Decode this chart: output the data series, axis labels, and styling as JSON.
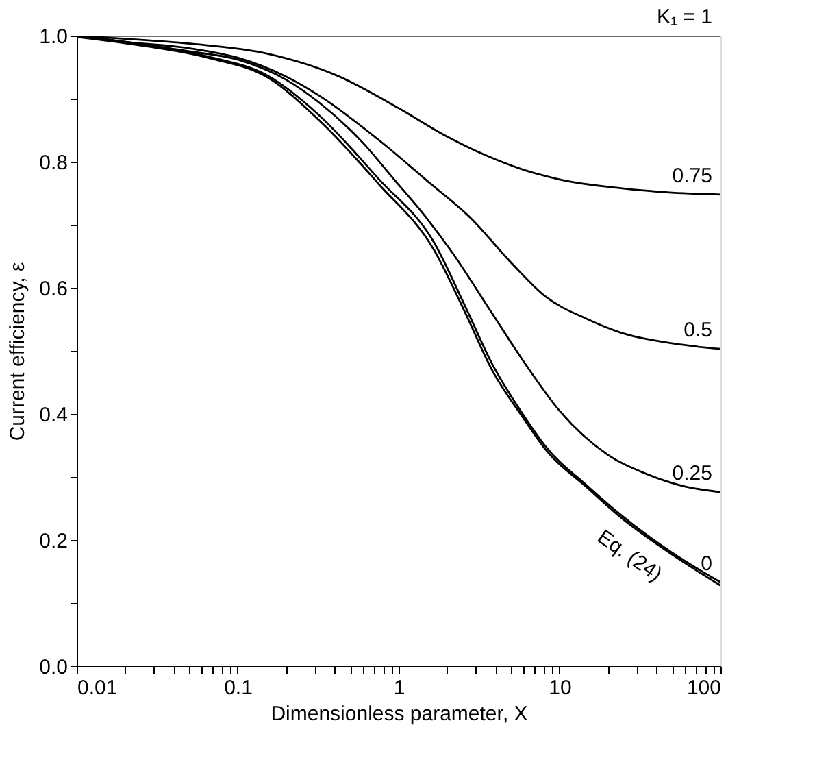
{
  "chart_data": {
    "type": "line",
    "xlabel": "Dimensionless parameter, X",
    "ylabel": "Current efficiency, ε",
    "log": "x",
    "xlim": [
      0.01,
      100
    ],
    "ylim": [
      0,
      1
    ],
    "xticks": [
      {
        "value": 0.01,
        "label": "0.01"
      },
      {
        "value": 0.02,
        "label": null
      },
      {
        "value": 0.03,
        "label": null
      },
      {
        "value": 0.04,
        "label": null
      },
      {
        "value": 0.05,
        "label": null
      },
      {
        "value": 0.06,
        "label": null
      },
      {
        "value": 0.07,
        "label": null
      },
      {
        "value": 0.08,
        "label": null
      },
      {
        "value": 0.09,
        "label": null
      },
      {
        "value": 0.1,
        "label": "0.1"
      },
      {
        "value": 0.2,
        "label": null
      },
      {
        "value": 0.3,
        "label": null
      },
      {
        "value": 0.4,
        "label": null
      },
      {
        "value": 0.5,
        "label": null
      },
      {
        "value": 0.6,
        "label": null
      },
      {
        "value": 0.7,
        "label": null
      },
      {
        "value": 0.8,
        "label": null
      },
      {
        "value": 0.9,
        "label": null
      },
      1,
      {
        "value": 2,
        "label": null
      },
      {
        "value": 3,
        "label": null
      },
      {
        "value": 4,
        "label": null
      },
      {
        "value": 5,
        "label": null
      },
      {
        "value": 6,
        "label": null
      },
      {
        "value": 7,
        "label": null
      },
      {
        "value": 8,
        "label": null
      },
      {
        "value": 9,
        "label": null
      },
      10,
      {
        "value": 20,
        "label": null
      },
      {
        "value": 30,
        "label": null
      },
      {
        "value": 40,
        "label": null
      },
      {
        "value": 50,
        "label": null
      },
      {
        "value": 60,
        "label": null
      },
      {
        "value": 70,
        "label": null
      },
      {
        "value": 80,
        "label": null
      },
      {
        "value": 90,
        "label": null
      },
      100
    ],
    "yticks": [
      {
        "value": 0,
        "label": "0.0"
      },
      {
        "value": 0.1,
        "label": null
      },
      0.2,
      {
        "value": 0.3,
        "label": null
      },
      0.4,
      {
        "value": 0.5,
        "label": null
      },
      0.6,
      {
        "value": 0.7,
        "label": null
      },
      0.8,
      {
        "value": 0.9,
        "label": null
      },
      {
        "value": 1,
        "label": "1.0"
      }
    ],
    "grid": false,
    "legend": false,
    "marker": "none",
    "line_style": "solid",
    "series": [
      {
        "name": "K₁ = 1",
        "color": "#000000",
        "x": [
          0.01,
          1,
          100
        ],
        "values": [
          1.0,
          1.0,
          1.0
        ]
      },
      {
        "name": "0.75",
        "color": "#000000",
        "x": [
          0.01,
          0.02,
          0.052,
          0.155,
          0.42,
          1.0,
          1.9,
          3.5,
          5.7,
          10,
          24,
          50,
          100
        ],
        "values": [
          1.0,
          0.995,
          0.987,
          0.971,
          0.936,
          0.885,
          0.843,
          0.81,
          0.789,
          0.772,
          0.758,
          0.751,
          0.748
        ]
      },
      {
        "name": "0.5",
        "color": "#000000",
        "x": [
          0.01,
          0.02,
          0.05,
          0.1,
          0.2,
          0.32,
          0.81,
          1.5,
          2.8,
          5,
          8.1,
          15,
          24,
          50,
          100
        ],
        "values": [
          1.0,
          0.99,
          0.98,
          0.965,
          0.935,
          0.905,
          0.828,
          0.77,
          0.711,
          0.64,
          0.587,
          0.55,
          0.529,
          0.512,
          0.503
        ]
      },
      {
        "name": "0.25",
        "color": "#000000",
        "x": [
          0.01,
          0.02,
          0.05,
          0.1,
          0.2,
          0.32,
          0.6,
          0.93,
          1.5,
          2.1,
          3.8,
          6.1,
          10,
          20,
          34.5,
          60,
          100
        ],
        "values": [
          1.0,
          0.99,
          0.975,
          0.962,
          0.93,
          0.894,
          0.83,
          0.773,
          0.71,
          0.66,
          0.56,
          0.48,
          0.405,
          0.335,
          0.305,
          0.285,
          0.276
        ]
      },
      {
        "name": "0",
        "color": "#000000",
        "x": [
          0.01,
          0.02,
          0.065,
          0.155,
          0.32,
          0.75,
          1.66,
          2.6,
          3.8,
          5.9,
          8.1,
          15,
          24,
          50,
          100
        ],
        "values": [
          1.0,
          0.99,
          0.967,
          0.936,
          0.874,
          0.773,
          0.672,
          0.57,
          0.48,
          0.4,
          0.35,
          0.285,
          0.24,
          0.18,
          0.133
        ]
      },
      {
        "name": "Eq. (24)",
        "color": "#000000",
        "x": [
          0.01,
          0.02,
          0.065,
          0.155,
          0.32,
          0.75,
          1.66,
          2.6,
          3.8,
          5.9,
          8.1,
          15,
          24,
          50,
          100
        ],
        "values": [
          0.998,
          0.988,
          0.965,
          0.933,
          0.866,
          0.765,
          0.66,
          0.56,
          0.47,
          0.395,
          0.345,
          0.282,
          0.236,
          0.177,
          0.128
        ]
      }
    ]
  }
}
